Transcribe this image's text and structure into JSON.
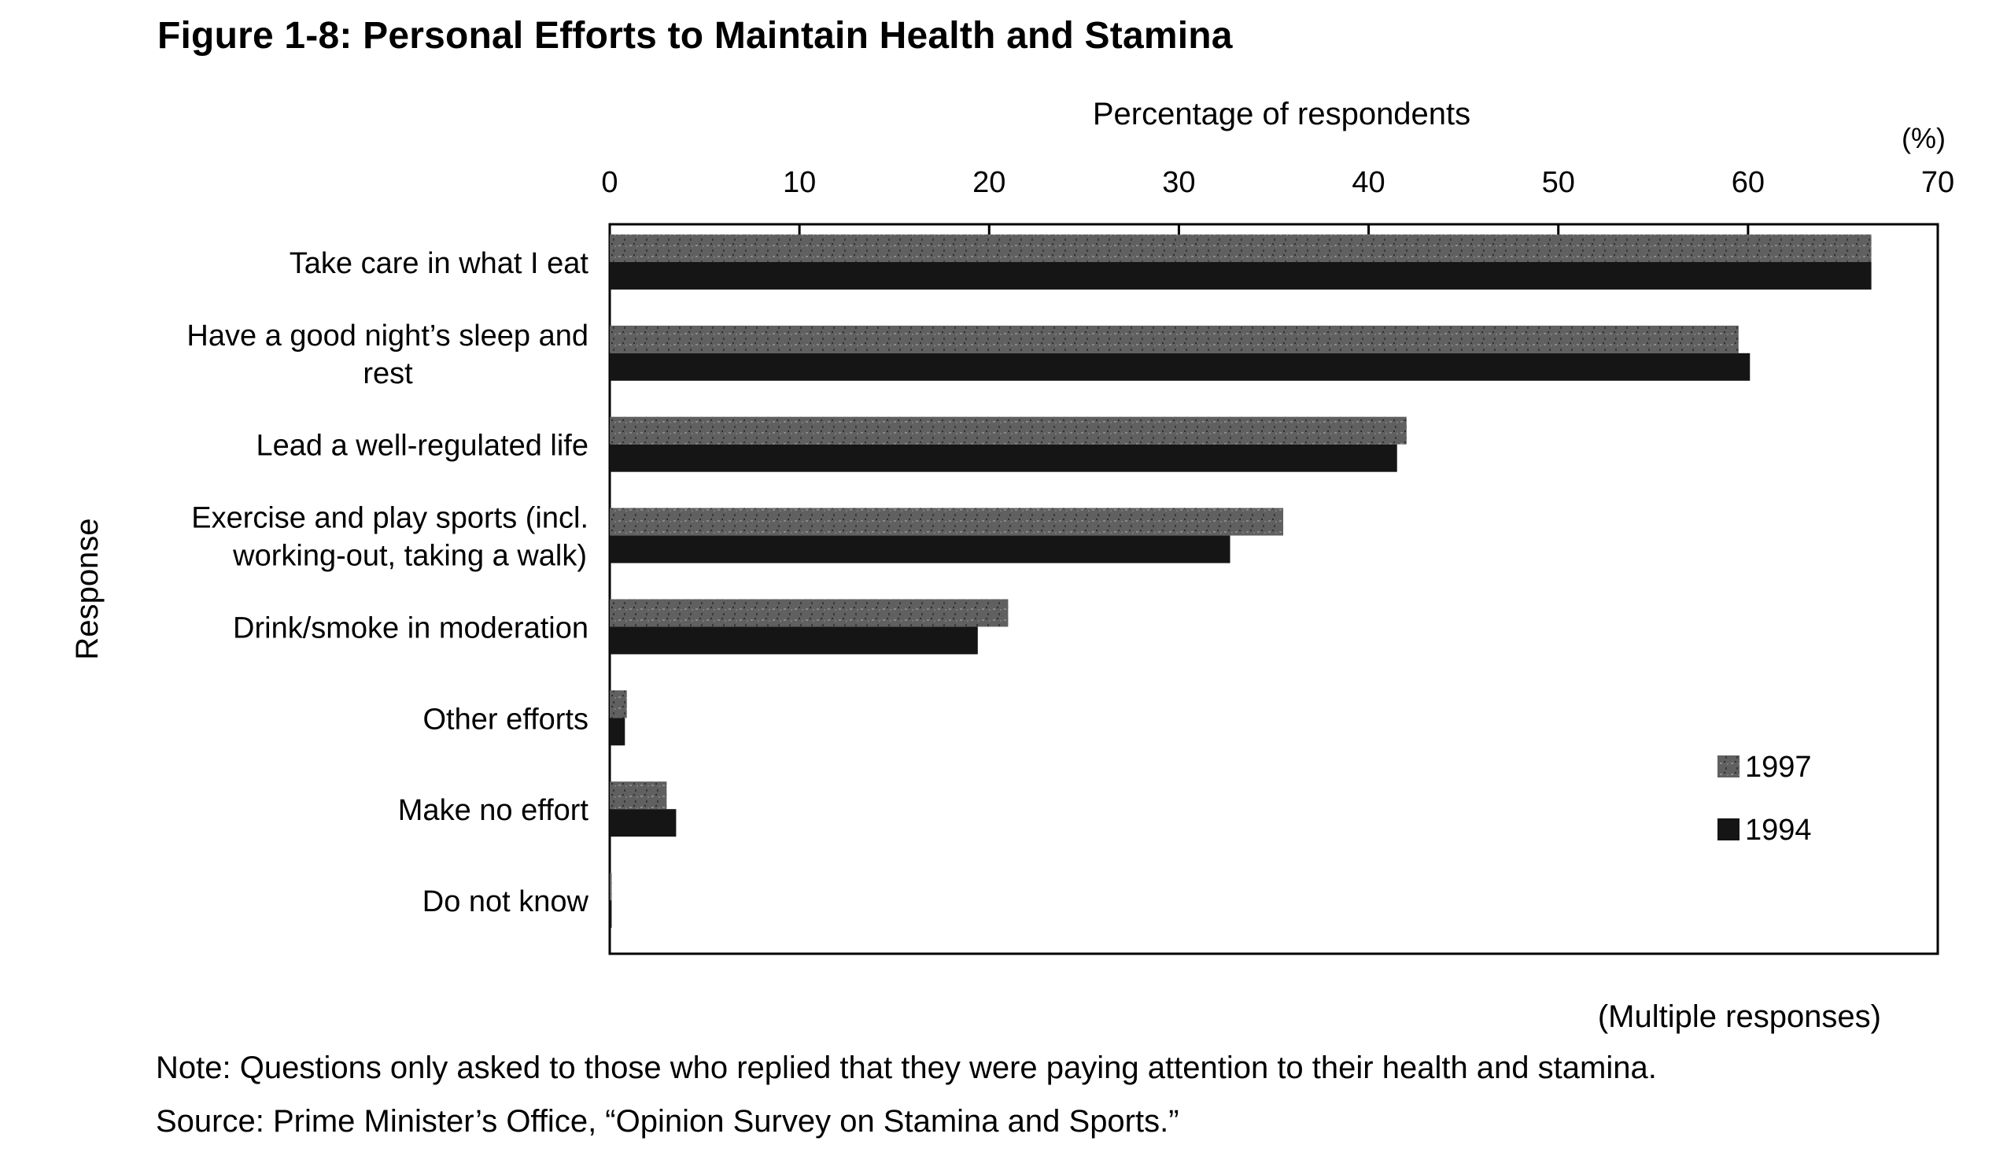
{
  "figure": {
    "title": "Figure 1-8: Personal Efforts to Maintain Health and Stamina",
    "multiple_responses": "(Multiple responses)",
    "note": "Note: Questions only asked to those who replied that they were paying attention to their health and stamina.",
    "source": "Source: Prime Minister’s Office, “Opinion Survey on Stamina and Sports.”"
  },
  "chart_data": {
    "type": "bar",
    "orientation": "horizontal",
    "xlabel": "Percentage of respondents",
    "xunit": "(%)",
    "ylabel": "Response",
    "xlim": [
      0,
      70
    ],
    "xticks": [
      0,
      10,
      20,
      30,
      40,
      50,
      60,
      70
    ],
    "grid": false,
    "legend_position": "bottom-right",
    "categories": [
      [
        "Take care in what I eat"
      ],
      [
        "Have a good night’s sleep and",
        "rest"
      ],
      [
        "Lead a well-regulated life"
      ],
      [
        "Exercise and play sports (incl.",
        "working-out, taking a walk)"
      ],
      [
        "Drink/smoke in moderation"
      ],
      [
        "Other efforts"
      ],
      [
        "Make no effort"
      ],
      [
        "Do not know"
      ]
    ],
    "series": [
      {
        "name": "1997",
        "color": "#5a5a5a",
        "values": [
          66.5,
          59.5,
          42.0,
          35.5,
          21.0,
          0.9,
          3.0,
          0.1
        ]
      },
      {
        "name": "1994",
        "color": "#151515",
        "values": [
          66.5,
          60.1,
          41.5,
          32.7,
          19.4,
          0.8,
          3.5,
          0.1
        ]
      }
    ]
  }
}
